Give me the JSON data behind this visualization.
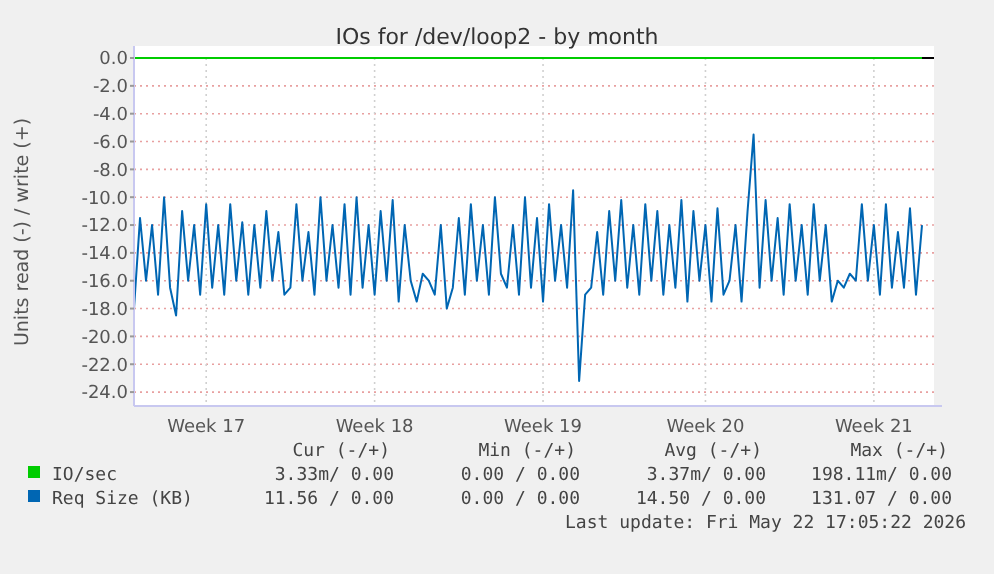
{
  "chart_data": {
    "type": "line",
    "title": "IOs for /dev/loop2 - by month",
    "ylabel": "Units read (-) / write (+)",
    "categories": [
      null,
      null,
      null,
      null,
      null,
      null,
      null,
      null,
      null,
      null,
      null,
      null,
      "Week 17",
      null,
      null,
      null,
      null,
      null,
      null,
      null,
      null,
      null,
      null,
      null,
      null,
      null,
      null,
      null,
      null,
      null,
      null,
      null,
      null,
      null,
      null,
      null,
      null,
      null,
      null,
      null,
      "Week 18",
      null,
      null,
      null,
      null,
      null,
      null,
      null,
      null,
      null,
      null,
      null,
      null,
      null,
      null,
      null,
      null,
      null,
      null,
      null,
      null,
      null,
      null,
      null,
      null,
      null,
      null,
      null,
      "Week 19",
      null,
      null,
      null,
      null,
      null,
      null,
      null,
      null,
      null,
      null,
      null,
      null,
      null,
      null,
      null,
      null,
      null,
      null,
      null,
      null,
      null,
      null,
      null,
      null,
      null,
      null,
      "Week 20",
      null,
      null,
      null,
      null,
      null,
      null,
      null,
      null,
      null,
      null,
      null,
      null,
      null,
      null,
      null,
      null,
      null,
      null,
      null,
      null,
      null,
      null,
      null,
      null,
      null,
      null,
      null,
      "Week 21",
      null,
      null,
      null,
      null,
      null,
      null,
      null,
      null
    ],
    "series": [
      {
        "name": "IO/sec",
        "color": "#00cc00",
        "values": [
          0,
          0,
          0,
          0,
          0,
          0,
          0,
          0,
          0,
          0,
          0,
          0,
          0,
          0,
          0,
          0,
          0,
          0,
          0,
          0,
          0,
          0,
          0,
          0,
          0,
          0,
          0,
          0,
          0,
          0,
          0,
          0,
          0,
          0,
          0,
          0,
          0,
          0,
          0,
          0,
          0,
          0,
          0,
          0,
          0,
          0,
          0,
          0,
          0,
          0,
          0,
          0,
          0,
          0,
          0,
          0,
          0,
          0,
          0,
          0,
          0,
          0,
          0,
          0,
          0,
          0,
          0,
          0,
          0,
          0,
          0,
          0,
          0,
          0,
          0,
          0,
          0,
          0,
          0,
          0,
          0,
          0,
          0,
          0,
          0,
          0,
          0,
          0,
          0,
          0,
          0,
          0,
          0,
          0,
          0,
          0,
          0,
          0,
          0,
          0,
          0,
          0,
          0,
          0,
          0,
          0,
          0,
          0,
          0,
          0,
          0,
          0,
          0,
          0,
          0,
          0,
          0,
          0,
          0,
          0,
          0,
          0,
          0,
          0,
          0,
          0,
          0,
          0,
          0,
          0,
          0,
          0
        ]
      },
      {
        "name": "Req Size (KB)",
        "color": "#0066b3",
        "values": [
          -18,
          -11.5,
          -16,
          -12,
          -17,
          -10,
          -16.5,
          -18.5,
          -11,
          -16,
          -12,
          -17,
          -10.5,
          -16.5,
          -12,
          -17,
          -10.5,
          -16,
          -11.8,
          -17,
          -12,
          -16.5,
          -11,
          -16,
          -12.5,
          -17,
          -16.5,
          -10.5,
          -16,
          -12.5,
          -17,
          -10,
          -16,
          -12,
          -16.5,
          -10.5,
          -17,
          -10,
          -16.5,
          -12,
          -17,
          -11,
          -16,
          -10.2,
          -17.5,
          -12,
          -16,
          -17.5,
          -15.5,
          -16,
          -17,
          -12,
          -18,
          -16.5,
          -11.5,
          -17,
          -10.5,
          -16,
          -12,
          -17,
          -10,
          -15.5,
          -16.5,
          -12,
          -17,
          -10,
          -16.5,
          -11.5,
          -17.5,
          -10.5,
          -16,
          -12,
          -16.5,
          -9.5,
          -23.2,
          -17,
          -16.5,
          -12.5,
          -17,
          -11,
          -16,
          -10.2,
          -16.5,
          -12,
          -17,
          -10.5,
          -16,
          -11,
          -17,
          -12,
          -16.5,
          -10.2,
          -17.5,
          -11,
          -16,
          -12,
          -17.5,
          -10.8,
          -17,
          -16,
          -12,
          -17.5,
          -11,
          -5.5,
          -16.5,
          -10.2,
          -16,
          -11.5,
          -17,
          -10.5,
          -16,
          -12,
          -17,
          -10.5,
          -16,
          -12,
          -17.5,
          -16,
          -16.5,
          -15.5,
          -16,
          -10.5,
          -16,
          -12,
          -17,
          -10.5,
          -16.5,
          -12.5,
          -16.5,
          -10.8,
          -17,
          -12
        ]
      }
    ],
    "ylim": [
      -25,
      0
    ],
    "yticks": [
      {
        "value": 0,
        "label": "0.0"
      },
      {
        "value": -2,
        "label": "-2.0"
      },
      {
        "value": -4,
        "label": "-4.0"
      },
      {
        "value": -6,
        "label": "-6.0"
      },
      {
        "value": -8,
        "label": "-8.0"
      },
      {
        "value": -10,
        "label": "-10.0"
      },
      {
        "value": -12,
        "label": "-12.0"
      },
      {
        "value": -14,
        "label": "-14.0"
      },
      {
        "value": -16,
        "label": "-16.0"
      },
      {
        "value": -18,
        "label": "-18.0"
      },
      {
        "value": -20,
        "label": "-20.0"
      },
      {
        "value": -22,
        "label": "-22.0"
      },
      {
        "value": -24,
        "label": "-24.0"
      }
    ],
    "ref_lines": [
      {
        "axis": "y",
        "value": 0,
        "color": "#000000"
      }
    ],
    "grid": true,
    "legend": "bottom",
    "annotations": [
      "Cur (-/+)",
      "Min (-/+)",
      "Avg (-/+)",
      "Max (-/+)",
      "3.33m/ 0.00",
      "0.00 / 0.00",
      "3.37m/ 0.00",
      "198.11m/ 0.00",
      "11.56 / 0.00",
      "0.00 / 0.00",
      "14.50 / 0.00",
      "131.07 / 0.00",
      "Last update: Fri May 22 17:05:22 2026"
    ]
  }
}
